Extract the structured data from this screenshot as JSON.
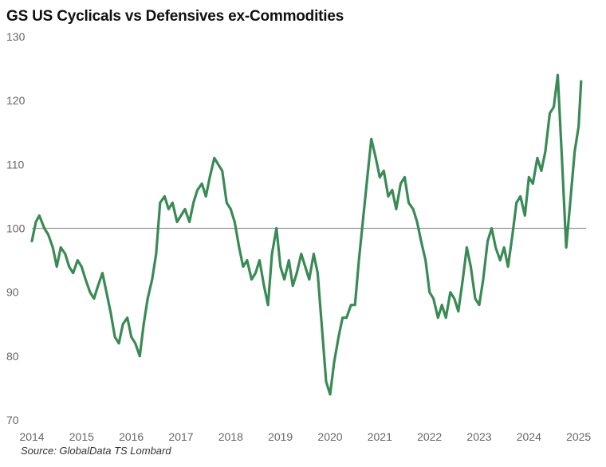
{
  "chart_data": {
    "type": "line",
    "title": "GS US Cyclicals vs Defensives ex-Commodities",
    "source": "Source: GlobalData TS Lombard",
    "xlabel": "",
    "ylabel": "",
    "ylim": [
      70,
      130
    ],
    "xlim": [
      2014,
      2025.15
    ],
    "y_ticks": [
      "70",
      "80",
      "90",
      "100",
      "110",
      "120",
      "130"
    ],
    "x_ticks": [
      "2014",
      "2015",
      "2016",
      "2017",
      "2018",
      "2019",
      "2020",
      "2021",
      "2022",
      "2023",
      "2024",
      "2025"
    ],
    "reference_line": 100,
    "grid": false,
    "series_color": "#3a8a55",
    "reference_color": "#999999",
    "series": [
      {
        "x": [
          2014.0,
          2014.08,
          2014.15,
          2014.25,
          2014.33,
          2014.42,
          2014.5,
          2014.58,
          2014.67,
          2014.75,
          2014.83,
          2014.92,
          2015.0,
          2015.08,
          2015.17,
          2015.25,
          2015.33,
          2015.42,
          2015.5,
          2015.58,
          2015.67,
          2015.75,
          2015.83,
          2015.92,
          2016.0,
          2016.08,
          2016.17,
          2016.25,
          2016.33,
          2016.42,
          2016.5,
          2016.58,
          2016.67,
          2016.75,
          2016.83,
          2016.92,
          2017.0,
          2017.08,
          2017.17,
          2017.25,
          2017.33,
          2017.42,
          2017.5,
          2017.58,
          2017.67,
          2017.75,
          2017.83,
          2017.92,
          2018.0,
          2018.08,
          2018.17,
          2018.25,
          2018.33,
          2018.42,
          2018.5,
          2018.58,
          2018.67,
          2018.75,
          2018.83,
          2018.92,
          2019.0,
          2019.08,
          2019.17,
          2019.25,
          2019.33,
          2019.42,
          2019.5,
          2019.58,
          2019.67,
          2019.75,
          2019.83,
          2019.92,
          2020.0,
          2020.08,
          2020.17,
          2020.25,
          2020.33,
          2020.42,
          2020.5,
          2020.58,
          2020.67,
          2020.75,
          2020.83,
          2020.92,
          2021.0,
          2021.08,
          2021.17,
          2021.25,
          2021.33,
          2021.42,
          2021.5,
          2021.58,
          2021.67,
          2021.75,
          2021.83,
          2021.92,
          2022.0,
          2022.08,
          2022.17,
          2022.25,
          2022.33,
          2022.42,
          2022.5,
          2022.58,
          2022.67,
          2022.75,
          2022.83,
          2022.92,
          2023.0,
          2023.08,
          2023.17,
          2023.25,
          2023.33,
          2023.42,
          2023.5,
          2023.58,
          2023.67,
          2023.75,
          2023.83,
          2023.92,
          2024.0,
          2024.08,
          2024.17,
          2024.25,
          2024.33,
          2024.42,
          2024.5,
          2024.58,
          2024.67,
          2024.75,
          2024.83,
          2024.92,
          2025.0,
          2025.05
        ],
        "values": [
          98,
          101,
          102,
          100,
          99,
          97,
          94,
          97,
          96,
          94,
          93,
          95,
          94,
          92,
          90,
          89,
          91,
          93,
          90,
          87,
          83,
          82,
          85,
          86,
          83,
          82,
          80,
          85,
          89,
          92,
          96,
          104,
          105,
          103,
          104,
          101,
          102,
          103,
          101,
          104,
          106,
          107,
          105,
          108,
          111,
          110,
          109,
          104,
          103,
          101,
          97,
          94,
          95,
          92,
          93,
          95,
          91,
          88,
          96,
          100,
          94,
          92,
          95,
          91,
          93,
          96,
          94,
          92,
          96,
          93,
          85,
          76,
          74,
          79,
          83,
          86,
          86,
          88,
          88,
          95,
          102,
          108,
          114,
          111,
          108,
          109,
          105,
          106,
          103,
          107,
          108,
          104,
          103,
          101,
          98,
          95,
          90,
          89,
          86,
          88,
          86,
          90,
          89,
          87,
          92,
          97,
          94,
          89,
          88,
          92,
          98,
          100,
          97,
          95,
          97,
          94,
          99,
          104,
          105,
          102,
          108,
          107,
          111,
          109,
          112,
          118,
          119,
          124,
          110,
          97,
          104,
          112,
          116,
          123
        ]
      }
    ]
  }
}
